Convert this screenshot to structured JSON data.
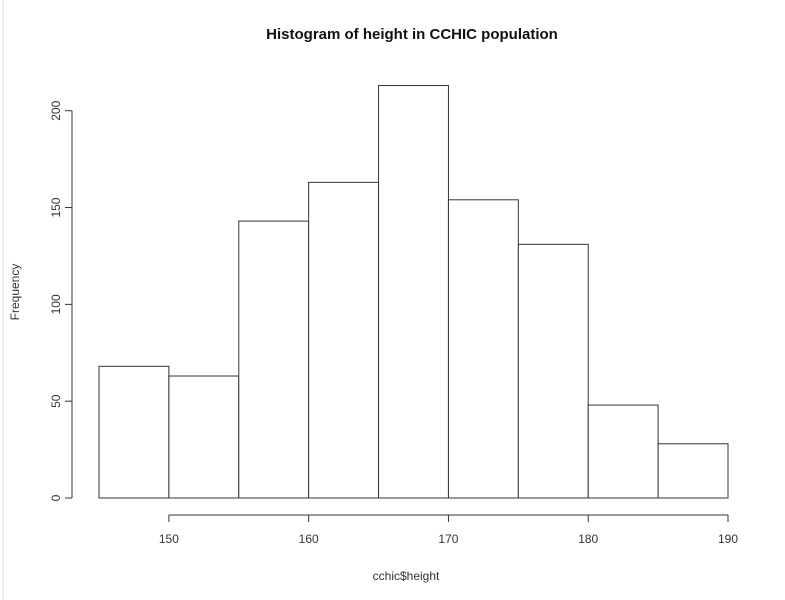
{
  "chart_data": {
    "type": "histogram",
    "title": "Histogram of height in CCHIC population",
    "x_label": "cchic$height",
    "y_label": "Frequency",
    "bins": [
      145,
      150,
      155,
      160,
      165,
      170,
      175,
      180,
      185,
      190
    ],
    "values": [
      68,
      63,
      143,
      163,
      213,
      154,
      131,
      48,
      28
    ],
    "color": "#ffffff",
    "edge_color": "#333333",
    "xlim": [
      145,
      190
    ],
    "xticks": [
      150,
      160,
      170,
      180,
      190
    ],
    "ylim": [
      0,
      220
    ],
    "yticks": [
      0,
      50,
      100,
      150,
      200
    ]
  }
}
